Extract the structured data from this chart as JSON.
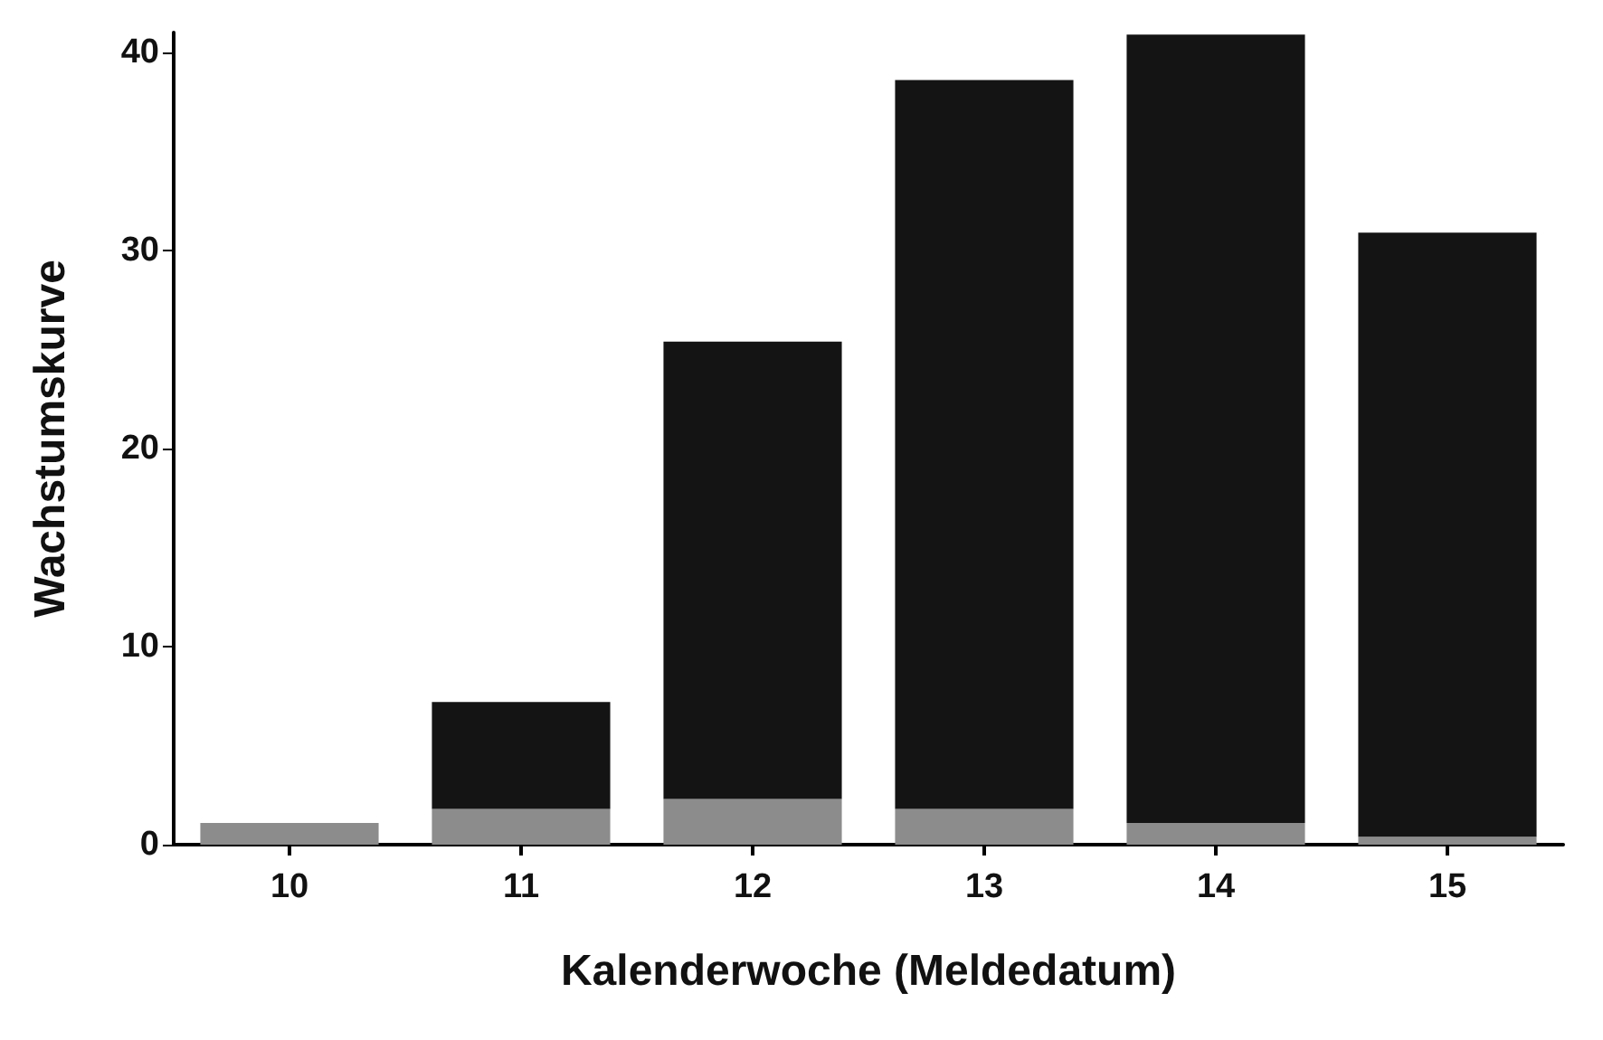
{
  "chart_data": {
    "type": "bar",
    "stacked": true,
    "xlabel": "Kalenderwoche (Meldedatum)",
    "ylabel": "Wachstumskurve",
    "categories": [
      "10",
      "11",
      "12",
      "13",
      "14",
      "15"
    ],
    "series": [
      {
        "color": "#8c8c8c",
        "values": [
          1.1,
          1.8,
          2.3,
          1.8,
          1.1,
          0.4
        ]
      },
      {
        "color": "#141414",
        "values": [
          0,
          5.4,
          23.1,
          36.8,
          39.8,
          30.5
        ]
      }
    ],
    "ylim": [
      0,
      41
    ],
    "yticks": [
      0,
      10,
      20,
      30,
      40
    ],
    "grid": false
  }
}
